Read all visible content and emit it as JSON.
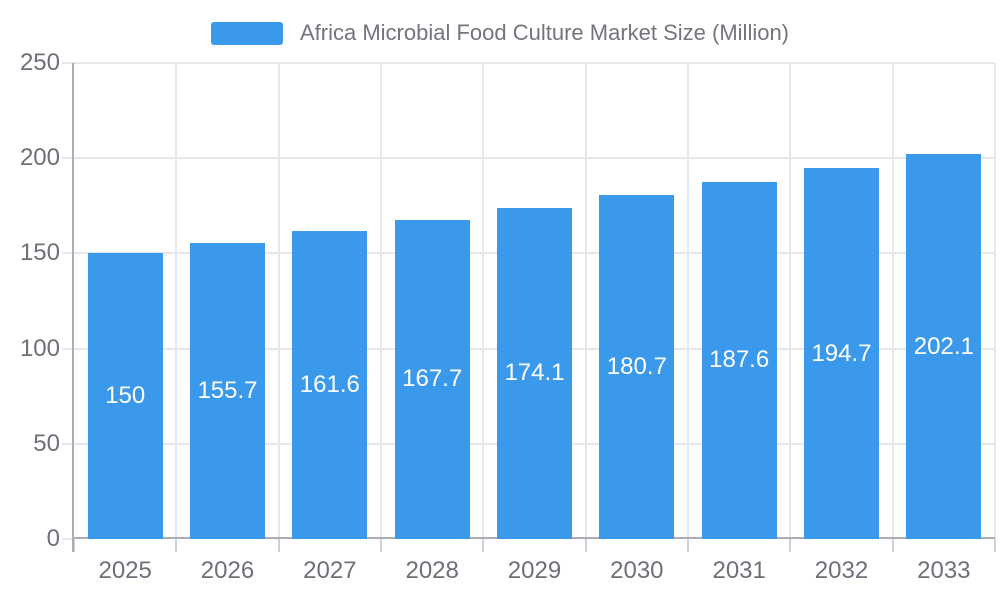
{
  "legend": {
    "label": "Africa Microbial Food Culture Market Size (Million)",
    "swatch_color": "#3B99EC",
    "text_color": "#73757D"
  },
  "chart_data": {
    "type": "bar",
    "title": "Africa Microbial Food Culture Market Size (Million)",
    "categories": [
      "2025",
      "2026",
      "2027",
      "2028",
      "2029",
      "2030",
      "2031",
      "2032",
      "2033"
    ],
    "values": [
      150,
      155.7,
      161.6,
      167.7,
      174.1,
      180.7,
      187.6,
      194.7,
      202.1
    ],
    "value_labels": [
      "150",
      "155.7",
      "161.6",
      "167.7",
      "174.1",
      "180.7",
      "187.6",
      "194.7",
      "202.1"
    ],
    "xlabel": "",
    "ylabel": "",
    "ylim": [
      0,
      250
    ],
    "yticks": [
      0,
      50,
      100,
      150,
      200,
      250
    ],
    "grid": true,
    "legend_position": "top",
    "bar_color": "#3B99EC",
    "value_label_color": "#FFFFFF",
    "axis_text_color": "#6E7079",
    "grid_color": "#E5E7EC",
    "axis_line_color": "#ABAEB5",
    "tick_color": "#CDD0D6"
  }
}
